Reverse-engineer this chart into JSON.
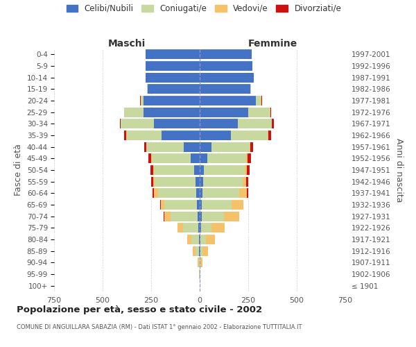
{
  "age_groups": [
    "100+",
    "95-99",
    "90-94",
    "85-89",
    "80-84",
    "75-79",
    "70-74",
    "65-69",
    "60-64",
    "55-59",
    "50-54",
    "45-49",
    "40-44",
    "35-39",
    "30-34",
    "25-29",
    "20-24",
    "15-19",
    "10-14",
    "5-9",
    "0-4"
  ],
  "birth_years": [
    "≤ 1901",
    "1902-1906",
    "1907-1911",
    "1912-1916",
    "1917-1921",
    "1922-1926",
    "1927-1931",
    "1932-1936",
    "1937-1941",
    "1942-1946",
    "1947-1951",
    "1952-1956",
    "1957-1961",
    "1962-1966",
    "1967-1971",
    "1972-1976",
    "1977-1981",
    "1982-1986",
    "1987-1991",
    "1992-1996",
    "1997-2001"
  ],
  "male_celibi": [
    0,
    0,
    0,
    2,
    5,
    8,
    12,
    14,
    18,
    22,
    28,
    48,
    82,
    195,
    235,
    290,
    290,
    268,
    280,
    278,
    278
  ],
  "male_coniugati": [
    1,
    2,
    5,
    20,
    38,
    78,
    138,
    168,
    198,
    210,
    208,
    198,
    192,
    180,
    172,
    98,
    14,
    2,
    0,
    0,
    0
  ],
  "male_vedovi": [
    0,
    2,
    5,
    14,
    22,
    28,
    32,
    18,
    18,
    9,
    5,
    4,
    2,
    2,
    0,
    0,
    0,
    0,
    0,
    0,
    0
  ],
  "male_divorziati": [
    0,
    0,
    0,
    0,
    0,
    0,
    2,
    4,
    10,
    9,
    14,
    14,
    10,
    14,
    5,
    2,
    2,
    0,
    0,
    0,
    0
  ],
  "female_nubili": [
    0,
    0,
    1,
    2,
    4,
    7,
    9,
    11,
    14,
    18,
    23,
    38,
    62,
    160,
    195,
    250,
    288,
    262,
    278,
    272,
    268
  ],
  "female_coniugate": [
    1,
    2,
    4,
    12,
    28,
    55,
    115,
    155,
    190,
    205,
    210,
    200,
    195,
    190,
    175,
    112,
    28,
    3,
    0,
    0,
    0
  ],
  "female_vedove": [
    0,
    3,
    9,
    28,
    48,
    68,
    78,
    58,
    38,
    18,
    9,
    7,
    5,
    3,
    2,
    2,
    2,
    0,
    0,
    0,
    0
  ],
  "female_divorziate": [
    0,
    0,
    0,
    0,
    0,
    0,
    2,
    2,
    9,
    9,
    14,
    18,
    14,
    14,
    9,
    5,
    2,
    0,
    0,
    0,
    0
  ],
  "color_celibi": "#4472C4",
  "color_coniugati": "#C8D9A0",
  "color_vedovi": "#F5C269",
  "color_divorziati": "#CC1111",
  "xlim": 750,
  "xtick_vals": [
    -750,
    -500,
    -250,
    0,
    250,
    500,
    750
  ],
  "title": "Popolazione per età, sesso e stato civile - 2002",
  "subtitle": "COMUNE DI ANGUILLARA SABAZIA (RM) - Dati ISTAT 1° gennaio 2002 - Elaborazione TUTTITALIA.IT",
  "label_maschi": "Maschi",
  "label_femmine": "Femmine",
  "ylabel_left": "Fasce di età",
  "ylabel_right": "Anni di nascita",
  "legend_labels": [
    "Celibi/Nubili",
    "Coniugati/e",
    "Vedovi/e",
    "Divorziati/e"
  ]
}
